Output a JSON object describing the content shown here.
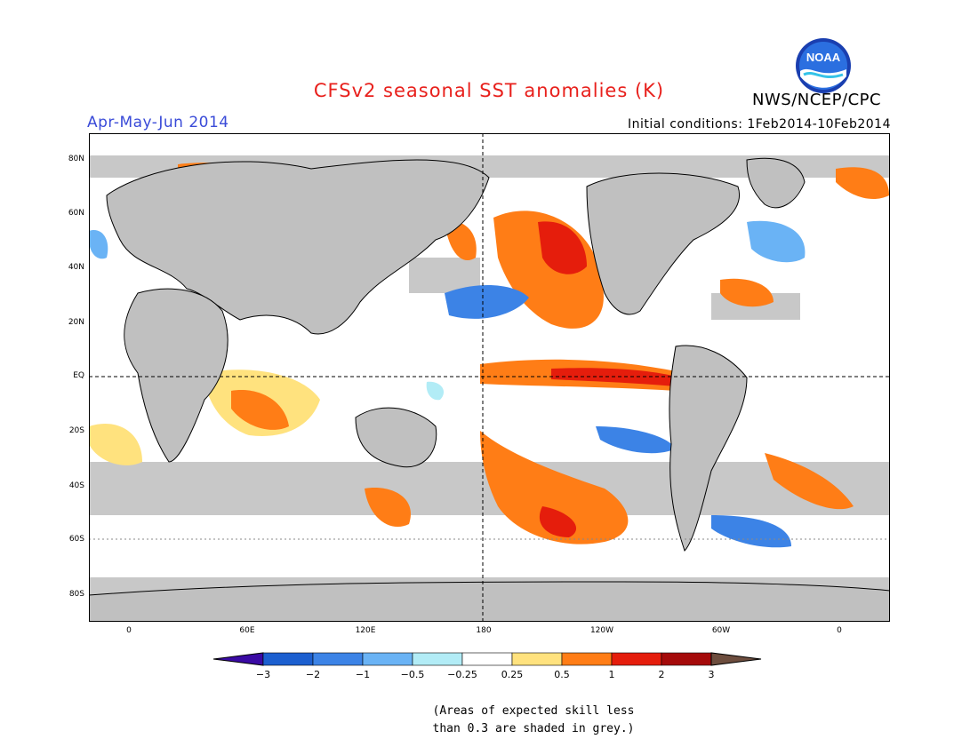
{
  "header": {
    "title": "CFSv2 seasonal SST anomalies (K)",
    "season": "Apr-May-Jun 2014",
    "initial_conditions": "Initial conditions: 1Feb2014-10Feb2014",
    "agency": "NWS/NCEP/CPC",
    "logo_text": "NOAA"
  },
  "map": {
    "lat_labels": [
      "80N",
      "60N",
      "40N",
      "20N",
      "EQ",
      "20S",
      "40S",
      "60S",
      "80S"
    ],
    "lon_labels": [
      "0",
      "60E",
      "120E",
      "180",
      "120W",
      "60W",
      "0"
    ],
    "legend": {
      "labels": [
        "-3",
        "-2",
        "-1",
        "-0.5",
        "-0.25",
        "0.25",
        "0.5",
        "1",
        "2",
        "3"
      ],
      "colors": [
        "#3a0aa4",
        "#1c5fcf",
        "#3c83e6",
        "#6ab3f5",
        "#b2ecf6",
        "#ffffff",
        "#ffe27e",
        "#ff7d16",
        "#e51d0c",
        "#a50a0a",
        "#6d4d3e"
      ]
    }
  },
  "footer": {
    "note_line1": "(Areas of expected skill less",
    "note_line2": "than 0.3 are shaded in grey.)"
  }
}
